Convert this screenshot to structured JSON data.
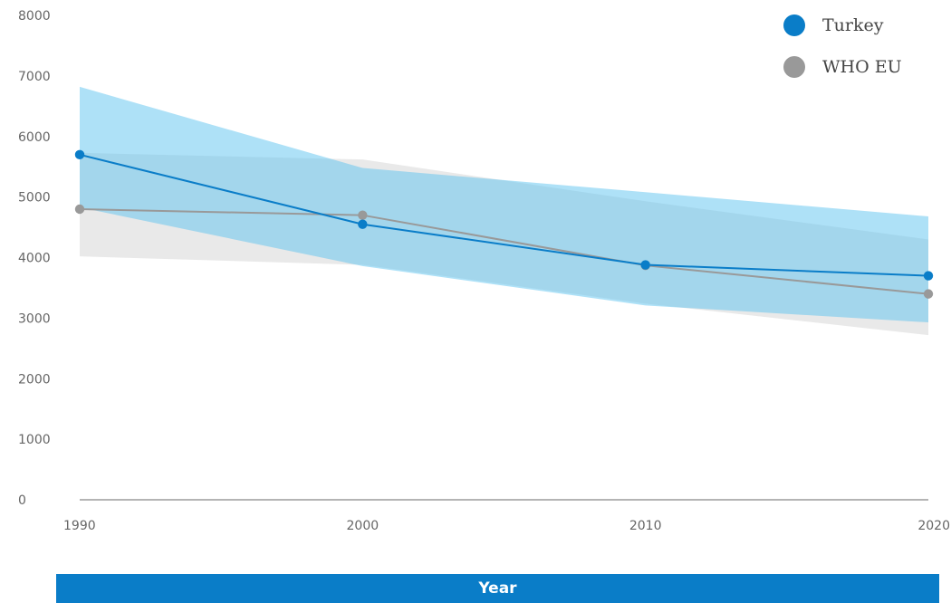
{
  "chart_data": {
    "type": "line",
    "x": [
      1990,
      2000,
      2010,
      2020
    ],
    "xlabel": "Year",
    "ylabel": "",
    "ylim": [
      0,
      8000
    ],
    "yticks": [
      0,
      1000,
      2000,
      3000,
      4000,
      5000,
      6000,
      7000,
      8000
    ],
    "xticks": [
      1990,
      2000,
      2010,
      2020
    ],
    "legend_position": "top-right",
    "series": [
      {
        "name": "Turkey",
        "color": "#0a7dc8",
        "band_color": "#5ec4f0",
        "values": [
          5700,
          4550,
          3880,
          3700
        ],
        "upper": [
          6820,
          5480,
          5080,
          4680
        ],
        "lower": [
          4830,
          3860,
          3210,
          2930
        ]
      },
      {
        "name": "WHO EU",
        "color": "#999999",
        "band_color": "#d4d4d4",
        "values": [
          4800,
          4700,
          3870,
          3400
        ],
        "upper": [
          5730,
          5620,
          4930,
          4300
        ],
        "lower": [
          4020,
          3880,
          3240,
          2720
        ]
      }
    ]
  }
}
